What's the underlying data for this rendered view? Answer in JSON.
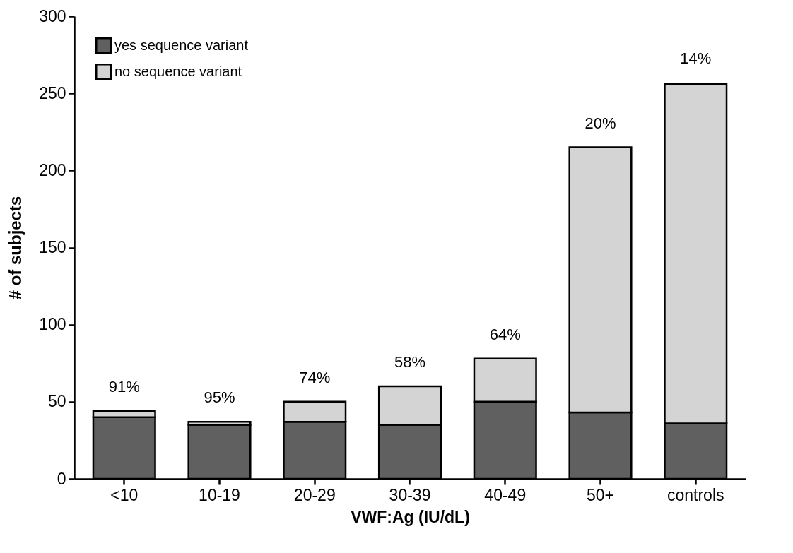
{
  "chart_data": {
    "type": "bar",
    "stacked": true,
    "xlabel": "VWF:Ag (IU/dL)",
    "ylabel": "# of subjects",
    "categories": [
      "<10",
      "10-19",
      "20-29",
      "30-39",
      "40-49",
      "50+",
      "controls"
    ],
    "series": [
      {
        "name": "yes sequence variant",
        "color": "#606060",
        "values": [
          40,
          35,
          37,
          35,
          50,
          43,
          36
        ]
      },
      {
        "name": "no sequence variant",
        "color": "#d4d4d4",
        "values": [
          4,
          2,
          13,
          25,
          28,
          172,
          220
        ]
      }
    ],
    "ylim": [
      0,
      300
    ],
    "yticks": [
      0,
      50,
      100,
      150,
      200,
      250,
      300
    ],
    "grid": false,
    "legend": "top left",
    "annotations": [
      {
        "text": "91%",
        "x": "<10",
        "y": 44
      },
      {
        "text": "95%",
        "x": "10-19",
        "y": 37
      },
      {
        "text": "74%",
        "x": "20-29",
        "y": 50
      },
      {
        "text": "58%",
        "x": "30-39",
        "y": 60
      },
      {
        "text": "64%",
        "x": "40-49",
        "y": 78
      },
      {
        "text": "20%",
        "x": "50+",
        "y": 215
      },
      {
        "text": "14%",
        "x": "controls",
        "y": 257
      }
    ]
  }
}
